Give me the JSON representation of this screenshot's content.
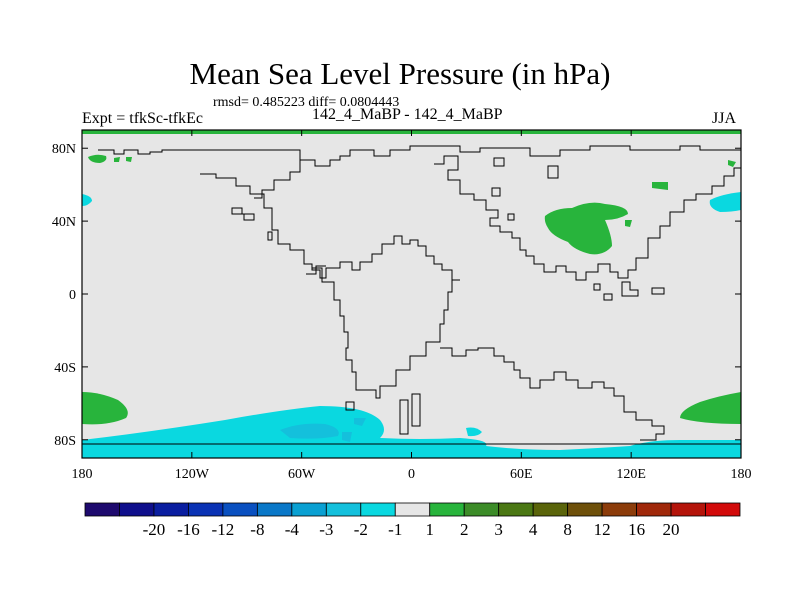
{
  "header": {
    "title": "Mean Sea Level Pressure (in hPa)",
    "stats": "rmsd= 0.485223 diff= 0.0804443",
    "left_label": "Expt = tfkSc-tfkEc",
    "center_label": "142_4_MaBP - 142_4_MaBP",
    "right_label": "JJA"
  },
  "chart_data": {
    "type": "map",
    "title": "Mean Sea Level Pressure (in hPa)",
    "xlim": [
      -180,
      180
    ],
    "ylim": [
      -90,
      90
    ],
    "x_ticks": [
      {
        "value": -180,
        "label": "180"
      },
      {
        "value": -120,
        "label": "120W"
      },
      {
        "value": -60,
        "label": "60W"
      },
      {
        "value": 0,
        "label": "0"
      },
      {
        "value": 60,
        "label": "60E"
      },
      {
        "value": 120,
        "label": "120E"
      },
      {
        "value": 180,
        "label": "180"
      }
    ],
    "y_ticks": [
      {
        "value": 80,
        "label": "80N"
      },
      {
        "value": 40,
        "label": "40N"
      },
      {
        "value": 0,
        "label": "0"
      },
      {
        "value": -40,
        "label": "40S"
      },
      {
        "value": -80,
        "label": "80S"
      }
    ],
    "colorbar": {
      "colors": [
        "#1e0a6e",
        "#0f0f8c",
        "#0a1ea0",
        "#0a32b4",
        "#0a50c0",
        "#0a78c8",
        "#0aa0d2",
        "#14c0dc",
        "#0ad8e0",
        "#e6e6e6",
        "#28b43c",
        "#3c8c28",
        "#4b7814",
        "#5a640a",
        "#6e500a",
        "#8c3c0a",
        "#a0280a",
        "#b4140a",
        "#d20a0a"
      ],
      "labels": [
        "-20",
        "-16",
        "-12",
        "-8",
        "-4",
        "-3",
        "-2",
        "-1",
        "1",
        "2",
        "3",
        "4",
        "8",
        "12",
        "16",
        "20"
      ]
    }
  }
}
